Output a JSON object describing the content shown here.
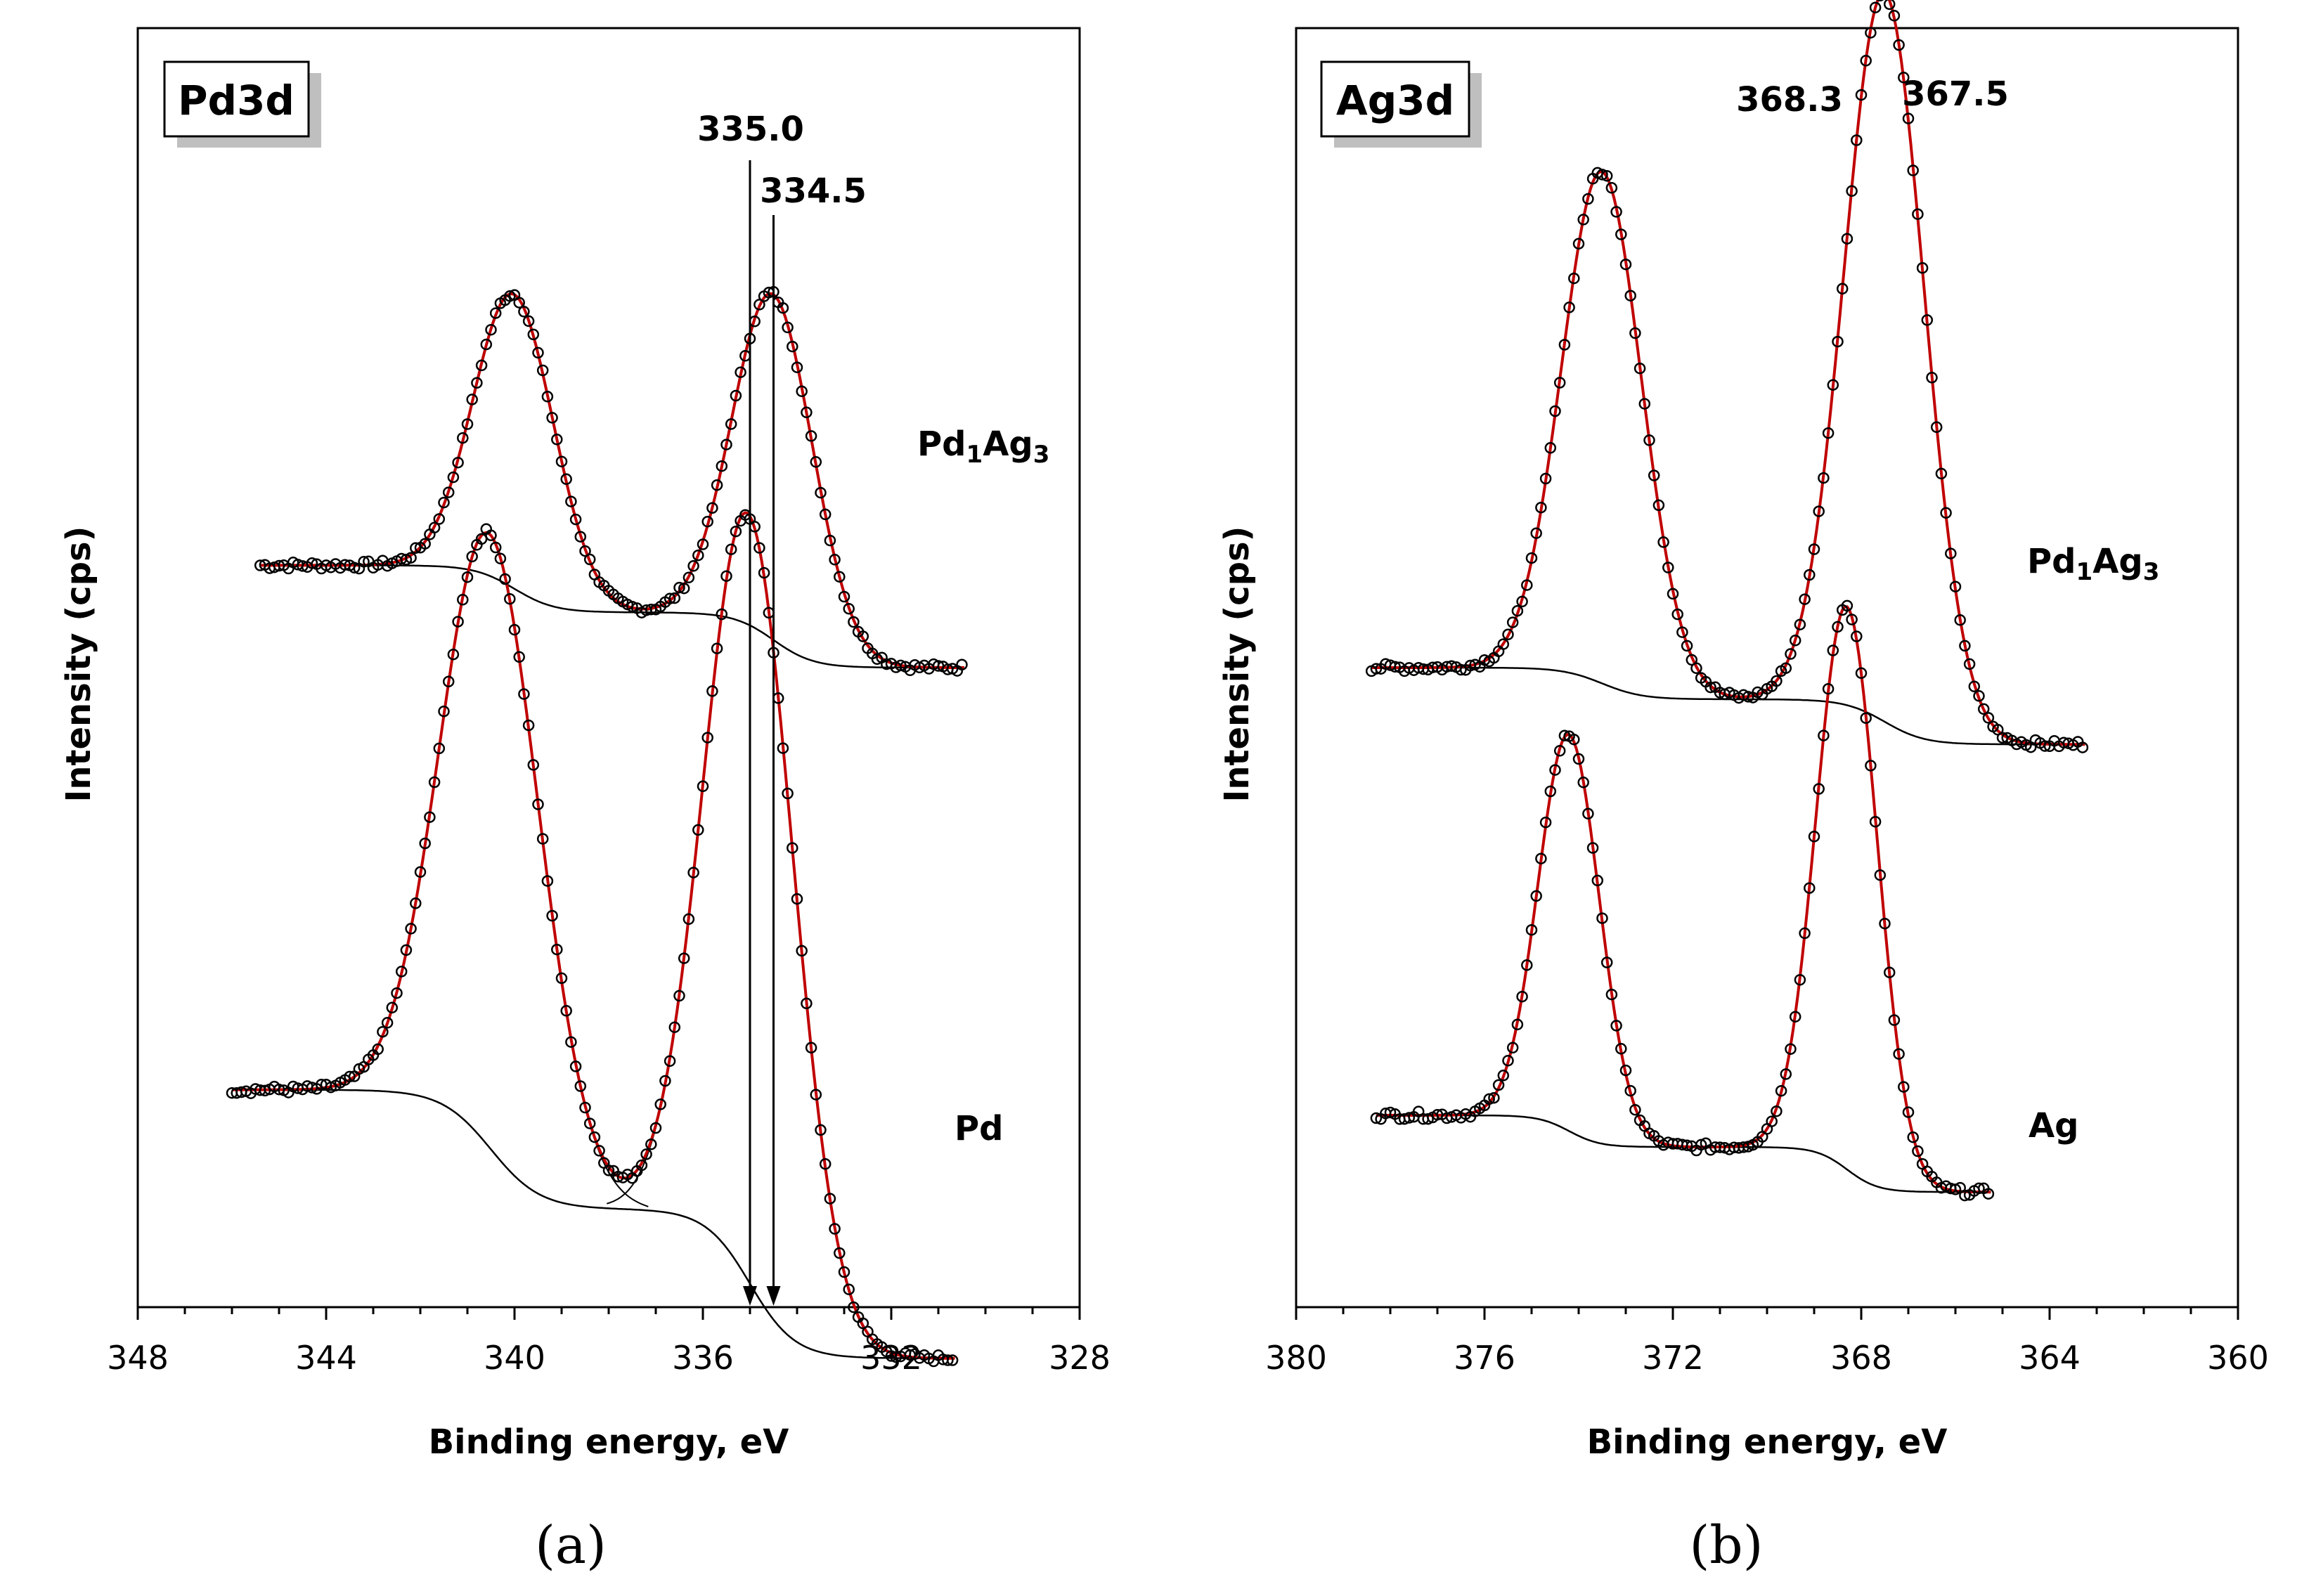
{
  "chart_data": [
    {
      "type": "line",
      "panel_id": "a",
      "caption": "(a)",
      "title": "Pd3d",
      "xlabel": "Binding energy, eV",
      "ylabel": "Intensity (cps)",
      "xlim": [
        348,
        328
      ],
      "xticks": [
        "348",
        "344",
        "340",
        "336",
        "332",
        "328"
      ],
      "x_reversed": true,
      "y_units": "arbitrary (offset spectra)",
      "series": [
        {
          "name": "Pd1Ag3",
          "label": {
            "main": "Pd",
            "sub1": "1",
            "mid": "Ag",
            "sub2": "3"
          },
          "offset": 0.58,
          "range": [
            345.4,
            330.4
          ],
          "peaks": [
            {
              "center": 340.0,
              "height": 0.23,
              "width": 0.85
            },
            {
              "center": 334.5,
              "height": 0.27,
              "width": 0.85
            }
          ],
          "bg_high": 0.0,
          "bg_low": -0.08
        },
        {
          "name": "Pd",
          "label": {
            "main": "Pd",
            "sub1": "",
            "mid": "",
            "sub2": ""
          },
          "offset": 0.17,
          "range": [
            346.0,
            330.6
          ],
          "peaks": [
            {
              "center": 340.5,
              "height": 0.48,
              "width": 1.05
            },
            {
              "center": 335.0,
              "height": 0.6,
              "width": 0.95
            }
          ],
          "bg_high": 0.0,
          "bg_low": -0.21
        }
      ],
      "annotations": [
        {
          "text": "335.0",
          "x": 335.0,
          "kind": "arrow"
        },
        {
          "text": "334.5",
          "x": 334.5,
          "kind": "arrow"
        }
      ]
    },
    {
      "type": "line",
      "panel_id": "b",
      "caption": "(b)",
      "title": "Ag3d",
      "xlabel": "Binding energy, eV",
      "ylabel": "Intensity (cps)",
      "xlim": [
        380,
        360
      ],
      "xticks": [
        "380",
        "376",
        "372",
        "368",
        "364",
        "360"
      ],
      "x_reversed": true,
      "y_units": "arbitrary (offset spectra)",
      "series": [
        {
          "name": "Pd1Ag3",
          "label": {
            "main": "Pd",
            "sub1": "1",
            "mid": "Ag",
            "sub2": "3"
          },
          "offset": 0.5,
          "range": [
            378.4,
            363.2
          ],
          "peaks": [
            {
              "center": 373.5,
              "height": 0.4,
              "width": 0.85
            },
            {
              "center": 367.5,
              "height": 0.57,
              "width": 0.85
            }
          ],
          "bg_high": 0.0,
          "bg_low": -0.06
        },
        {
          "name": "Ag",
          "label": {
            "main": "Ag",
            "sub1": "",
            "mid": "",
            "sub2": ""
          },
          "offset": 0.15,
          "range": [
            378.3,
            365.2
          ],
          "peaks": [
            {
              "center": 374.2,
              "height": 0.31,
              "width": 0.65
            },
            {
              "center": 368.3,
              "height": 0.44,
              "width": 0.65
            }
          ],
          "bg_high": 0.0,
          "bg_low": -0.06
        }
      ],
      "annotations": [
        {
          "text": "368.3",
          "x": 368.3,
          "kind": "label"
        },
        {
          "text": "367.5",
          "x": 367.5,
          "kind": "label"
        }
      ]
    }
  ]
}
